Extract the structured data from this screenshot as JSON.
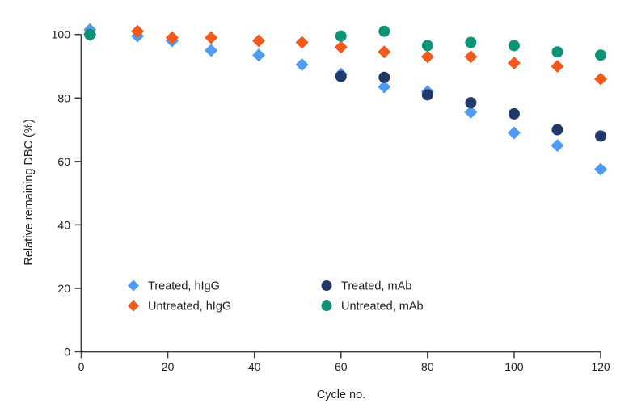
{
  "chart_data": {
    "type": "scatter",
    "title": "",
    "xlabel": "Cycle no.",
    "ylabel": "Relative remaining DBC (%)",
    "xlim": [
      0,
      120
    ],
    "ylim": [
      0,
      100
    ],
    "xticks": [
      0,
      20,
      40,
      60,
      80,
      100,
      120
    ],
    "yticks": [
      0,
      20,
      40,
      60,
      80,
      100
    ],
    "grid": false,
    "legend_position": "inside-bottom-left-two-columns",
    "series": [
      {
        "name": "Treated, hIgG",
        "marker": "diamond",
        "color": "#4D9BF2",
        "x": [
          2,
          13,
          21,
          30,
          41,
          51,
          60,
          70,
          80,
          90,
          100,
          110,
          120
        ],
        "y": [
          101.5,
          99.5,
          98,
          95,
          93.5,
          90.5,
          87.5,
          83.5,
          82,
          75.5,
          69,
          65,
          57.5
        ]
      },
      {
        "name": "Untreated, hIgG",
        "marker": "diamond",
        "color": "#F3591A",
        "x": [
          2,
          13,
          21,
          30,
          41,
          51,
          60,
          70,
          80,
          90,
          100,
          110,
          120
        ],
        "y": [
          100,
          101,
          99,
          99,
          98,
          97.5,
          96,
          94.5,
          93,
          93,
          91,
          90,
          86
        ]
      },
      {
        "name": "Treated, mAb",
        "marker": "circle",
        "color": "#21386B",
        "x": [
          2,
          60,
          70,
          80,
          90,
          100,
          110,
          120
        ],
        "y": [
          100,
          86.8,
          86.5,
          81,
          78.5,
          75,
          70,
          68
        ]
      },
      {
        "name": "Untreated, mAb",
        "marker": "circle",
        "color": "#0D9377",
        "x": [
          2,
          60,
          70,
          80,
          90,
          100,
          110,
          120
        ],
        "y": [
          100,
          99.5,
          101,
          96.5,
          97.5,
          96.5,
          94.5,
          93.5
        ]
      }
    ],
    "colors": {
      "axis": "#3c3c3c",
      "text": "#1d1d1d",
      "background": "#ffffff"
    }
  }
}
